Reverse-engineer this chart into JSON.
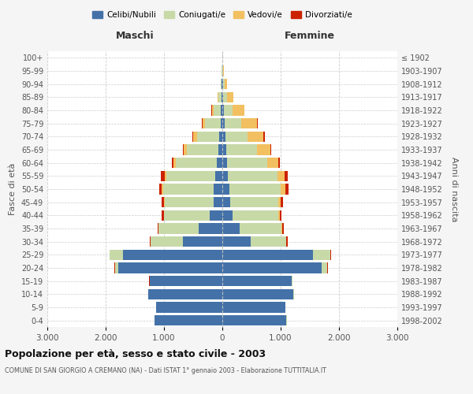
{
  "age_groups": [
    "0-4",
    "5-9",
    "10-14",
    "15-19",
    "20-24",
    "25-29",
    "30-34",
    "35-39",
    "40-44",
    "45-49",
    "50-54",
    "55-59",
    "60-64",
    "65-69",
    "70-74",
    "75-79",
    "80-84",
    "85-89",
    "90-94",
    "95-99",
    "100+"
  ],
  "birth_years": [
    "1998-2002",
    "1993-1997",
    "1988-1992",
    "1983-1987",
    "1978-1982",
    "1973-1977",
    "1968-1972",
    "1963-1967",
    "1958-1962",
    "1953-1957",
    "1948-1952",
    "1943-1947",
    "1938-1942",
    "1933-1937",
    "1928-1932",
    "1923-1927",
    "1918-1922",
    "1913-1917",
    "1908-1912",
    "1903-1907",
    "≤ 1902"
  ],
  "male": {
    "celibe": [
      1160,
      1130,
      1270,
      1240,
      1780,
      1700,
      670,
      410,
      210,
      155,
      150,
      125,
      100,
      72,
      52,
      33,
      22,
      12,
      7,
      4,
      2
    ],
    "coniugato": [
      1,
      2,
      5,
      10,
      60,
      230,
      560,
      680,
      790,
      830,
      870,
      840,
      700,
      530,
      380,
      260,
      130,
      60,
      20,
      5,
      1
    ],
    "vedovo": [
      0,
      0,
      0,
      0,
      1,
      2,
      2,
      3,
      5,
      10,
      15,
      25,
      40,
      55,
      70,
      50,
      30,
      15,
      5,
      2,
      0
    ],
    "divorziato": [
      0,
      0,
      0,
      2,
      5,
      5,
      15,
      20,
      35,
      40,
      50,
      60,
      30,
      15,
      15,
      5,
      2,
      0,
      0,
      0,
      0
    ]
  },
  "female": {
    "nubile": [
      1100,
      1080,
      1220,
      1190,
      1700,
      1550,
      490,
      300,
      170,
      135,
      115,
      95,
      75,
      62,
      48,
      38,
      25,
      15,
      9,
      4,
      2
    ],
    "coniugata": [
      2,
      3,
      8,
      15,
      100,
      300,
      600,
      720,
      790,
      820,
      880,
      850,
      700,
      530,
      380,
      280,
      150,
      70,
      25,
      8,
      2
    ],
    "vedova": [
      0,
      0,
      0,
      1,
      2,
      2,
      5,
      10,
      20,
      40,
      80,
      120,
      180,
      230,
      280,
      280,
      200,
      100,
      45,
      10,
      1
    ],
    "divorziata": [
      0,
      0,
      0,
      2,
      5,
      8,
      20,
      25,
      40,
      50,
      60,
      55,
      30,
      20,
      15,
      8,
      3,
      1,
      0,
      0,
      0
    ]
  },
  "colors": {
    "celibe_nubile": "#4472a8",
    "coniugato": "#c8d9a8",
    "vedovo": "#f2c060",
    "divorziato": "#cc2200"
  },
  "xlim": 3000,
  "title": "Popolazione per età, sesso e stato civile - 2003",
  "subtitle": "COMUNE DI SAN GIORGIO A CREMANO (NA) - Dati ISTAT 1° gennaio 2003 - Elaborazione TUTTITALIA.IT",
  "ylabel_left": "Fasce di età",
  "ylabel_right": "Anni di nascita",
  "header_male": "Maschi",
  "header_female": "Femmine",
  "bg_color": "#f5f5f5",
  "plot_bg": "#ffffff",
  "grid_color": "#cccccc"
}
